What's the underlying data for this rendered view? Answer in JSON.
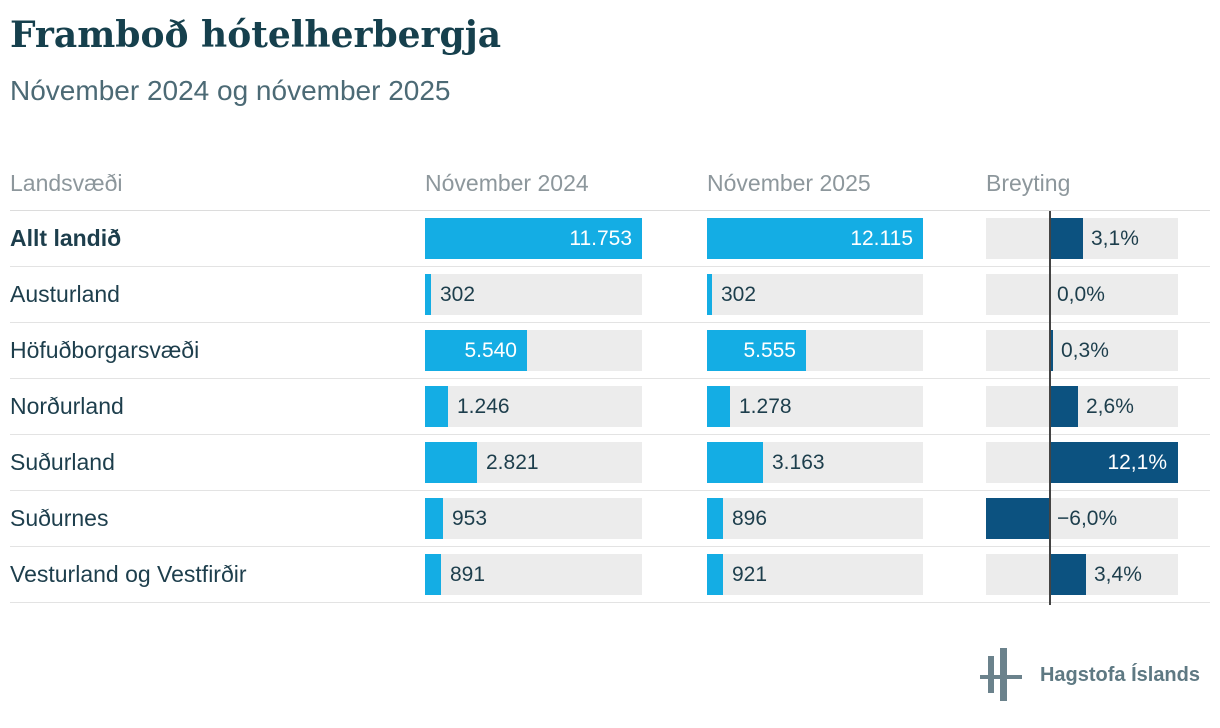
{
  "title": "Framboð hótelherbergja",
  "subtitle": "Nóvember 2024 og nóvember 2025",
  "table": {
    "columns": [
      {
        "label": "Landsvæði"
      },
      {
        "label": "Nóvember 2024"
      },
      {
        "label": "Nóvember 2025"
      },
      {
        "label": "Breyting"
      }
    ]
  },
  "footer": {
    "logo_icon": "hagstofa-islands-logo",
    "brand": "Hagstofa Íslands"
  },
  "colors": {
    "bar_cyan": "#14ade4",
    "bar_navy": "#0c5280",
    "track": "#ececec",
    "title": "#16404d",
    "subtitle": "#4c6a75",
    "header_gray": "#8d979c",
    "text_dark": "#1d3e4c",
    "separator": "#dcdcdc",
    "zero_line": "#444444",
    "logo_gray": "#6b828c",
    "brand_text": "#5e7983"
  },
  "chart_data": {
    "type": "bar",
    "orientation": "horizontal",
    "title": "Framboð hótelherbergja",
    "subtitle": "Nóvember 2024 og nóvember 2025",
    "legend": "none",
    "grid": "off",
    "categories": [
      "Allt landið",
      "Austurland",
      "Höfuðborgarsvæði",
      "Norðurland",
      "Suðurland",
      "Suðurnes",
      "Vesturland og Vestfirðir"
    ],
    "bold_categories": [
      "Allt landið"
    ],
    "series": [
      {
        "name": "Nóvember 2024",
        "values": [
          11753,
          302,
          5540,
          1246,
          2821,
          953,
          891
        ],
        "labels": [
          "11.753",
          "302",
          "5.540",
          "1.246",
          "2.821",
          "953",
          "891"
        ],
        "scale_max": 11753
      },
      {
        "name": "Nóvember 2025",
        "values": [
          12115,
          302,
          5555,
          1278,
          3163,
          896,
          921
        ],
        "labels": [
          "12.115",
          "302",
          "5.555",
          "1.278",
          "3.163",
          "896",
          "921"
        ],
        "scale_max": 12115
      },
      {
        "name": "Breyting",
        "unit": "%",
        "values": [
          3.1,
          0.0,
          0.3,
          2.6,
          12.1,
          -6.0,
          3.4
        ],
        "labels": [
          "3,1%",
          "0,0%",
          "0,3%",
          "2,6%",
          "12,1%",
          "−6,0%",
          "3,4%"
        ],
        "axis_min": -6.0,
        "axis_max": 12.1,
        "zero_line": true
      }
    ]
  }
}
